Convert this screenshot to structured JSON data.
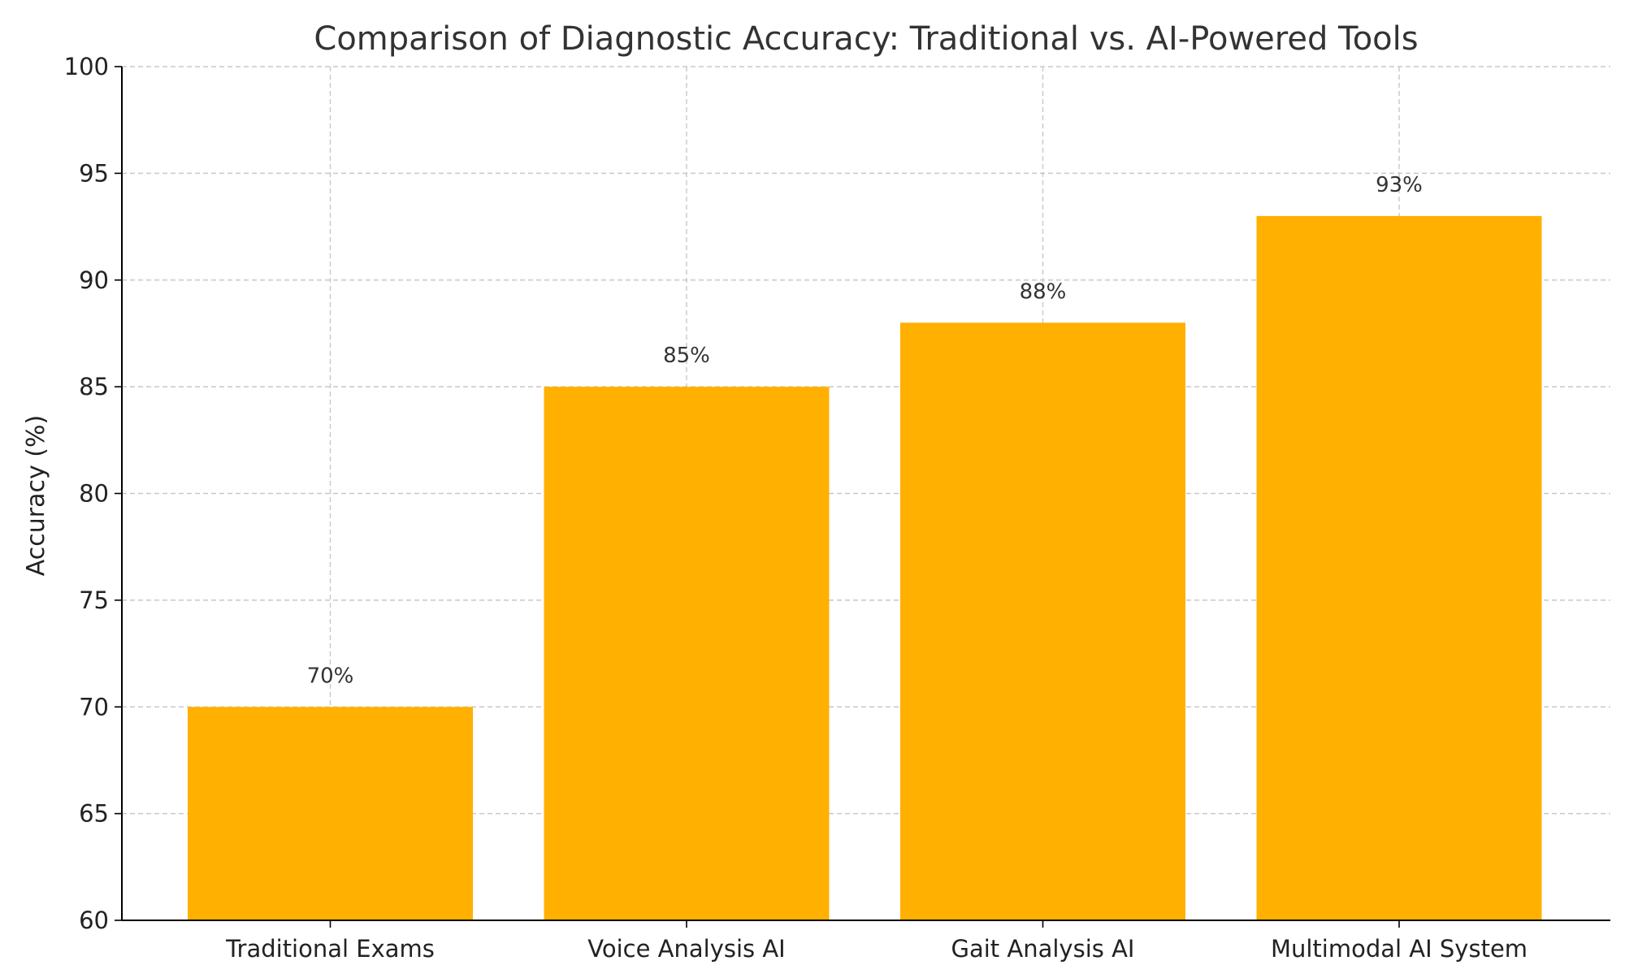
{
  "chart_data": {
    "type": "bar",
    "title": "Comparison of Diagnostic Accuracy: Traditional vs. AI-Powered Tools",
    "xlabel": "",
    "ylabel": "Accuracy (%)",
    "categories": [
      "Traditional Exams",
      "Voice Analysis AI",
      "Gait Analysis AI",
      "Multimodal AI System"
    ],
    "values": [
      70,
      85,
      88,
      93
    ],
    "data_labels": [
      "70%",
      "85%",
      "88%",
      "93%"
    ],
    "ylim": [
      60,
      100
    ],
    "yticks": [
      60,
      65,
      70,
      75,
      80,
      85,
      90,
      95,
      100
    ],
    "grid": true,
    "bar_color": "#FFB000"
  }
}
